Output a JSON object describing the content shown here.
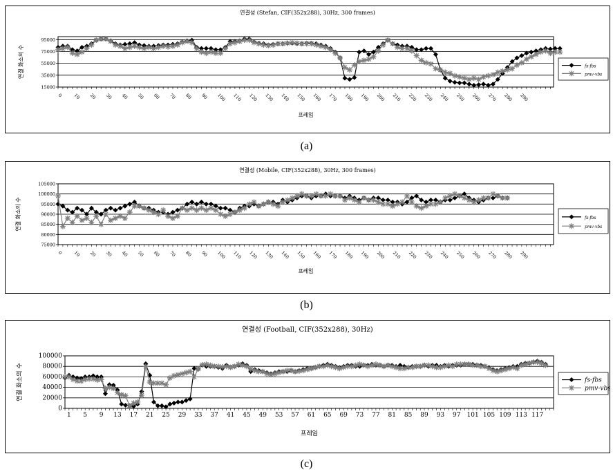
{
  "captions": [
    "(a)",
    "(b)",
    "(c)"
  ],
  "chart_data": [
    {
      "type": "line",
      "title": "연결성 (Stefan, CIF(352x288), 30Hz, 300 frames)",
      "xlabel": "프레임",
      "ylabel": "연결 화소의 수",
      "ylim": [
        15000,
        100000
      ],
      "y_ticks": [
        15000,
        35000,
        55000,
        75000,
        95000
      ],
      "y_tick_labels": [
        "15000",
        "35000",
        "55000",
        "75000",
        "95000"
      ],
      "x_tick_labels": [
        "0",
        "10",
        "20",
        "30",
        "40",
        "50",
        "60",
        "70",
        "80",
        "90",
        "100",
        "110",
        "120",
        "130",
        "140",
        "150",
        "160",
        "170",
        "180",
        "190",
        "200",
        "210",
        "220",
        "230",
        "240",
        "250",
        "260",
        "270",
        "280",
        "290"
      ],
      "x_tick_values": [
        0,
        10,
        20,
        30,
        40,
        50,
        60,
        70,
        80,
        90,
        100,
        110,
        120,
        130,
        140,
        150,
        160,
        170,
        180,
        190,
        200,
        210,
        220,
        230,
        240,
        250,
        260,
        270,
        280,
        290
      ],
      "x_domain": [
        0,
        311
      ],
      "x_step": 3,
      "legend": "right",
      "grid": true,
      "series": [
        {
          "name": "fs-fbs",
          "marker": "diamond",
          "color": "#000000",
          "values": [
            82000,
            84000,
            84000,
            78000,
            76000,
            82000,
            84000,
            88000,
            94000,
            96000,
            96000,
            93000,
            88000,
            86000,
            87000,
            88000,
            90000,
            86000,
            85000,
            84000,
            84000,
            85000,
            86000,
            86000,
            87000,
            88000,
            91000,
            93000,
            94000,
            82000,
            80000,
            80000,
            80000,
            78000,
            78000,
            82000,
            92000,
            92000,
            93000,
            96000,
            96000,
            91000,
            89000,
            88000,
            86000,
            87000,
            88000,
            88000,
            89000,
            89000,
            88000,
            88000,
            89000,
            89000,
            88000,
            86000,
            84000,
            80000,
            74000,
            64000,
            30000,
            28000,
            31000,
            74000,
            76000,
            70000,
            74000,
            82000,
            88000,
            94000,
            88000,
            86000,
            84000,
            84000,
            82000,
            78000,
            78000,
            80000,
            80000,
            70000,
            44000,
            30000,
            25000,
            23000,
            22000,
            22000,
            20000,
            18000,
            19000,
            20000,
            18000,
            20000,
            28000,
            38000,
            48000,
            58000,
            64000,
            68000,
            72000,
            74000,
            76000,
            78000,
            80000,
            79000,
            80000,
            80000
          ]
        },
        {
          "name": "pmv-vbs",
          "marker": "star",
          "color": "#7f7f7f",
          "values": [
            78000,
            80000,
            82000,
            72000,
            70000,
            74000,
            80000,
            86000,
            94000,
            96000,
            96000,
            92000,
            86000,
            84000,
            80000,
            82000,
            84000,
            82000,
            80000,
            82000,
            80000,
            82000,
            84000,
            83000,
            84000,
            86000,
            90000,
            92000,
            90000,
            80000,
            74000,
            72000,
            74000,
            72000,
            72000,
            80000,
            88000,
            90000,
            92000,
            94000,
            94000,
            90000,
            88000,
            86000,
            85000,
            86000,
            88000,
            88000,
            89000,
            90000,
            89000,
            88000,
            88000,
            88000,
            86000,
            84000,
            82000,
            78000,
            72000,
            64000,
            48000,
            44000,
            52000,
            58000,
            60000,
            62000,
            66000,
            76000,
            86000,
            94000,
            88000,
            82000,
            80000,
            80000,
            76000,
            68000,
            60000,
            56000,
            54000,
            46000,
            44000,
            40000,
            38000,
            34000,
            32000,
            30000,
            28000,
            30000,
            28000,
            32000,
            34000,
            36000,
            40000,
            42000,
            44000,
            46000,
            52000,
            56000,
            62000,
            66000,
            70000,
            74000,
            76000,
            72000,
            74000,
            74000
          ]
        }
      ]
    },
    {
      "type": "line",
      "title": "연결성 (Mobile, CIF(352x288), 30Hz, 300 frames)",
      "xlabel": "프레임",
      "ylabel": "연결 화소의 수",
      "ylim": [
        75000,
        105000
      ],
      "y_ticks": [
        75000,
        80000,
        85000,
        90000,
        95000,
        100000,
        105000
      ],
      "y_tick_labels": [
        "75000",
        "80000",
        "85000",
        "90000",
        "95000",
        "100000",
        "105000"
      ],
      "x_tick_labels": [
        "0",
        "10",
        "20",
        "30",
        "40",
        "50",
        "60",
        "70",
        "80",
        "90",
        "100",
        "110",
        "120",
        "130",
        "140",
        "150",
        "160",
        "170",
        "180",
        "190",
        "200",
        "210",
        "220",
        "230",
        "240",
        "250",
        "260",
        "270",
        "280",
        "290"
      ],
      "x_tick_values": [
        0,
        10,
        20,
        30,
        40,
        50,
        60,
        70,
        80,
        90,
        100,
        110,
        120,
        130,
        140,
        150,
        160,
        170,
        180,
        190,
        200,
        210,
        220,
        230,
        240,
        250,
        260,
        270,
        280,
        290
      ],
      "x_domain": [
        0,
        311
      ],
      "x_step": 3,
      "legend": "right",
      "grid": true,
      "series": [
        {
          "name": "fs-fbs",
          "marker": "diamond",
          "color": "#000000",
          "values": [
            95000,
            94000,
            92000,
            91000,
            93000,
            92000,
            90000,
            93000,
            91000,
            90000,
            92000,
            93000,
            92000,
            93000,
            94000,
            95000,
            96000,
            94000,
            93000,
            93000,
            92000,
            91000,
            91000,
            90000,
            91000,
            92000,
            93000,
            95000,
            96000,
            95000,
            96000,
            95000,
            95000,
            94000,
            93000,
            93000,
            92000,
            91000,
            93000,
            94000,
            94000,
            95000,
            94000,
            95000,
            96000,
            96000,
            95000,
            97000,
            96000,
            97000,
            98000,
            99000,
            99000,
            98000,
            99000,
            99000,
            100000,
            99000,
            99000,
            99000,
            98000,
            99000,
            98000,
            97000,
            98000,
            97000,
            98000,
            98000,
            97000,
            97000,
            96000,
            96000,
            95000,
            96000,
            98000,
            99000,
            97000,
            96000,
            97000,
            97000,
            96000,
            97000,
            97000,
            98000,
            99000,
            100000,
            98000,
            97000,
            96000,
            97000,
            98000,
            98000,
            99000,
            98000,
            98000
          ]
        },
        {
          "name": "pmv-vbs",
          "marker": "star",
          "color": "#7f7f7f",
          "values": [
            99000,
            84000,
            88000,
            86000,
            89000,
            87000,
            88000,
            86000,
            89000,
            85000,
            90000,
            87000,
            88000,
            89000,
            88000,
            91000,
            94000,
            94000,
            93000,
            92000,
            91000,
            90000,
            92000,
            89000,
            88000,
            89000,
            93000,
            92000,
            93000,
            92000,
            93000,
            92000,
            93000,
            92000,
            90000,
            89000,
            90000,
            91000,
            92000,
            93000,
            95000,
            96000,
            94000,
            95000,
            96000,
            95000,
            94000,
            96000,
            97000,
            98000,
            99000,
            100000,
            99000,
            99000,
            100000,
            99000,
            99000,
            100000,
            99000,
            99000,
            97000,
            98000,
            97000,
            96000,
            98000,
            97000,
            97000,
            96000,
            95000,
            95000,
            94000,
            95000,
            96000,
            99000,
            96000,
            94000,
            93000,
            94000,
            95000,
            95000,
            96000,
            98000,
            99000,
            100000,
            99000,
            98000,
            97000,
            96000,
            97000,
            98000,
            98000,
            100000,
            99000,
            98000,
            98000
          ]
        }
      ]
    },
    {
      "type": "line",
      "title": "연결성 (Football, CIF(352x288), 30Hz)",
      "xlabel": "프레임",
      "ylabel": "연결 화소의 수",
      "ylim": [
        0,
        100000
      ],
      "y_ticks": [
        0,
        20000,
        40000,
        60000,
        80000,
        100000
      ],
      "y_tick_labels": [
        "0",
        "20000",
        "40000",
        "60000",
        "80000",
        "100000"
      ],
      "x_tick_labels": [
        "1",
        "5",
        "9",
        "13",
        "17",
        "21",
        "25",
        "29",
        "33",
        "37",
        "41",
        "45",
        "49",
        "53",
        "57",
        "61",
        "65",
        "69",
        "73",
        "77",
        "81",
        "85",
        "89",
        "93",
        "97",
        "101",
        "105",
        "109",
        "113",
        "117"
      ],
      "x_tick_values": [
        1,
        5,
        9,
        13,
        17,
        21,
        25,
        29,
        33,
        37,
        41,
        45,
        49,
        53,
        57,
        61,
        65,
        69,
        73,
        77,
        81,
        85,
        89,
        93,
        97,
        101,
        105,
        109,
        113,
        117
      ],
      "x_domain": [
        0,
        121
      ],
      "x_step": 1,
      "legend": "right",
      "grid": true,
      "series": [
        {
          "name": "fs-fbs",
          "marker": "diamond",
          "color": "#000000",
          "values": [
            58000,
            63000,
            60000,
            58000,
            57000,
            60000,
            60000,
            62000,
            60000,
            60000,
            28000,
            45000,
            44000,
            35000,
            8000,
            6000,
            5000,
            4000,
            8000,
            32000,
            85000,
            63000,
            12000,
            5000,
            5000,
            3000,
            8000,
            10000,
            12000,
            12000,
            15000,
            18000,
            76000,
            75000,
            82000,
            80000,
            80000,
            80000,
            78000,
            76000,
            82000,
            79000,
            80000,
            82000,
            85000,
            82000,
            70000,
            74000,
            72000,
            70000,
            68000,
            66000,
            68000,
            70000,
            70000,
            70000,
            72000,
            70000,
            72000,
            74000,
            76000,
            76000,
            78000,
            80000,
            82000,
            84000,
            82000,
            80000,
            78000,
            80000,
            82000,
            82000,
            80000,
            80000,
            82000,
            82000,
            84000,
            82000,
            82000,
            80000,
            82000,
            82000,
            80000,
            82000,
            80000,
            78000,
            80000,
            80000,
            80000,
            82000,
            80000,
            82000,
            82000,
            80000,
            82000,
            80000,
            82000,
            82000,
            82000,
            84000,
            84000,
            84000,
            82000,
            82000,
            80000,
            78000,
            74000,
            72000,
            74000,
            76000,
            78000,
            80000,
            80000,
            84000,
            86000,
            86000,
            88000,
            90000,
            88000,
            84000
          ]
        },
        {
          "name": "pmv-vbs",
          "marker": "star",
          "color": "#7f7f7f",
          "values": [
            60000,
            60000,
            55000,
            52000,
            52000,
            55000,
            56000,
            56000,
            54000,
            55000,
            38000,
            40000,
            38000,
            30000,
            26000,
            24000,
            5000,
            10000,
            12000,
            25000,
            80000,
            50000,
            48000,
            48000,
            48000,
            45000,
            58000,
            62000,
            64000,
            66000,
            68000,
            70000,
            60000,
            75000,
            83000,
            84000,
            82000,
            80000,
            80000,
            79000,
            80000,
            78000,
            80000,
            84000,
            82000,
            80000,
            75000,
            72000,
            70000,
            70000,
            66000,
            64000,
            66000,
            68000,
            70000,
            72000,
            72000,
            70000,
            71000,
            72000,
            74000,
            76000,
            78000,
            80000,
            80000,
            82000,
            80000,
            78000,
            76000,
            78000,
            80000,
            80000,
            82000,
            84000,
            82000,
            80000,
            82000,
            84000,
            82000,
            80000,
            82000,
            80000,
            78000,
            76000,
            76000,
            78000,
            78000,
            80000,
            80000,
            82000,
            82000,
            80000,
            78000,
            78000,
            80000,
            82000,
            80000,
            84000,
            84000,
            84000,
            84000,
            82000,
            82000,
            80000,
            80000,
            76000,
            72000,
            70000,
            72000,
            74000,
            76000,
            78000,
            76000,
            82000,
            84000,
            86000,
            88000,
            88000,
            86000,
            82000
          ]
        }
      ]
    }
  ]
}
